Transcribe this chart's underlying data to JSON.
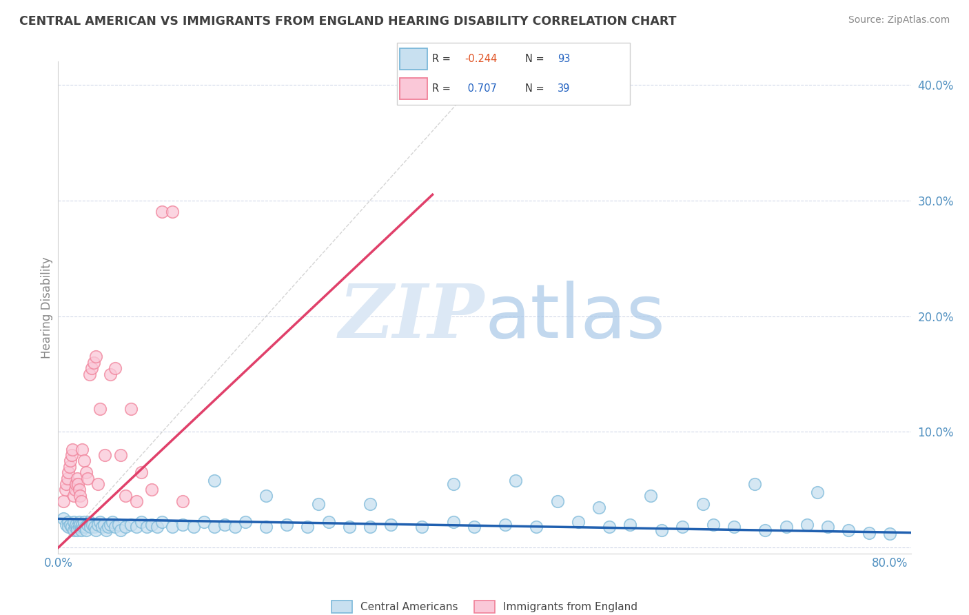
{
  "title": "CENTRAL AMERICAN VS IMMIGRANTS FROM ENGLAND HEARING DISABILITY CORRELATION CHART",
  "source": "Source: ZipAtlas.com",
  "ylabel": "Hearing Disability",
  "xlim": [
    0.0,
    0.82
  ],
  "ylim": [
    -0.005,
    0.42
  ],
  "xtick_positions": [
    0.0,
    0.8
  ],
  "xticklabels": [
    "0.0%",
    "80.0%"
  ],
  "ytick_positions": [
    0.0,
    0.1,
    0.2,
    0.3,
    0.4
  ],
  "yticklabels": [
    "",
    "10.0%",
    "20.0%",
    "30.0%",
    "40.0%"
  ],
  "watermark_text": "ZIPatlas",
  "blue_color": "#7ab8d9",
  "blue_fill": "#c8e0f0",
  "pink_color": "#f08098",
  "pink_fill": "#fac8d8",
  "trend_blue": "#2060b0",
  "trend_pink": "#e0406a",
  "diag_color": "#b8b8b8",
  "title_color": "#404040",
  "tick_label_color": "#5090c0",
  "background_color": "#ffffff",
  "grid_color": "#d0d8e8",
  "blue_scatter_x": [
    0.005,
    0.008,
    0.01,
    0.01,
    0.012,
    0.013,
    0.015,
    0.015,
    0.016,
    0.017,
    0.018,
    0.018,
    0.02,
    0.02,
    0.021,
    0.022,
    0.022,
    0.023,
    0.024,
    0.025,
    0.026,
    0.027,
    0.028,
    0.03,
    0.031,
    0.033,
    0.035,
    0.036,
    0.038,
    0.04,
    0.042,
    0.044,
    0.046,
    0.048,
    0.05,
    0.052,
    0.055,
    0.058,
    0.06,
    0.065,
    0.07,
    0.075,
    0.08,
    0.085,
    0.09,
    0.095,
    0.1,
    0.11,
    0.12,
    0.13,
    0.14,
    0.15,
    0.16,
    0.17,
    0.18,
    0.2,
    0.22,
    0.24,
    0.26,
    0.28,
    0.3,
    0.32,
    0.35,
    0.38,
    0.4,
    0.43,
    0.46,
    0.5,
    0.53,
    0.55,
    0.58,
    0.6,
    0.63,
    0.65,
    0.68,
    0.7,
    0.72,
    0.74,
    0.76,
    0.78,
    0.8,
    0.48,
    0.52,
    0.57,
    0.62,
    0.67,
    0.73,
    0.38,
    0.44,
    0.25,
    0.3,
    0.2,
    0.15
  ],
  "blue_scatter_y": [
    0.025,
    0.02,
    0.022,
    0.018,
    0.02,
    0.018,
    0.022,
    0.015,
    0.018,
    0.02,
    0.018,
    0.015,
    0.022,
    0.018,
    0.02,
    0.018,
    0.015,
    0.02,
    0.018,
    0.022,
    0.018,
    0.015,
    0.02,
    0.022,
    0.018,
    0.02,
    0.018,
    0.015,
    0.02,
    0.022,
    0.018,
    0.02,
    0.015,
    0.018,
    0.02,
    0.022,
    0.018,
    0.02,
    0.015,
    0.018,
    0.02,
    0.018,
    0.022,
    0.018,
    0.02,
    0.018,
    0.022,
    0.018,
    0.02,
    0.018,
    0.022,
    0.018,
    0.02,
    0.018,
    0.022,
    0.018,
    0.02,
    0.018,
    0.022,
    0.018,
    0.018,
    0.02,
    0.018,
    0.022,
    0.018,
    0.02,
    0.018,
    0.022,
    0.018,
    0.02,
    0.015,
    0.018,
    0.02,
    0.018,
    0.015,
    0.018,
    0.02,
    0.018,
    0.015,
    0.013,
    0.012,
    0.04,
    0.035,
    0.045,
    0.038,
    0.055,
    0.048,
    0.055,
    0.058,
    0.038,
    0.038,
    0.045,
    0.058
  ],
  "pink_scatter_x": [
    0.005,
    0.007,
    0.008,
    0.009,
    0.01,
    0.011,
    0.012,
    0.013,
    0.014,
    0.015,
    0.016,
    0.017,
    0.018,
    0.019,
    0.02,
    0.021,
    0.022,
    0.023,
    0.025,
    0.027,
    0.028,
    0.03,
    0.032,
    0.034,
    0.036,
    0.038,
    0.04,
    0.045,
    0.05,
    0.055,
    0.06,
    0.065,
    0.07,
    0.075,
    0.08,
    0.09,
    0.1,
    0.11,
    0.12
  ],
  "pink_scatter_y": [
    0.04,
    0.05,
    0.055,
    0.06,
    0.065,
    0.07,
    0.075,
    0.08,
    0.085,
    0.045,
    0.05,
    0.055,
    0.06,
    0.055,
    0.05,
    0.045,
    0.04,
    0.085,
    0.075,
    0.065,
    0.06,
    0.15,
    0.155,
    0.16,
    0.165,
    0.055,
    0.12,
    0.08,
    0.15,
    0.155,
    0.08,
    0.045,
    0.12,
    0.04,
    0.065,
    0.05,
    0.29,
    0.29,
    0.04
  ],
  "pink_trend_x": [
    0.0,
    0.36
  ],
  "pink_trend_y": [
    0.0,
    0.305
  ],
  "blue_trend_x": [
    0.0,
    0.82
  ],
  "blue_trend_y": [
    0.025,
    0.013
  ]
}
